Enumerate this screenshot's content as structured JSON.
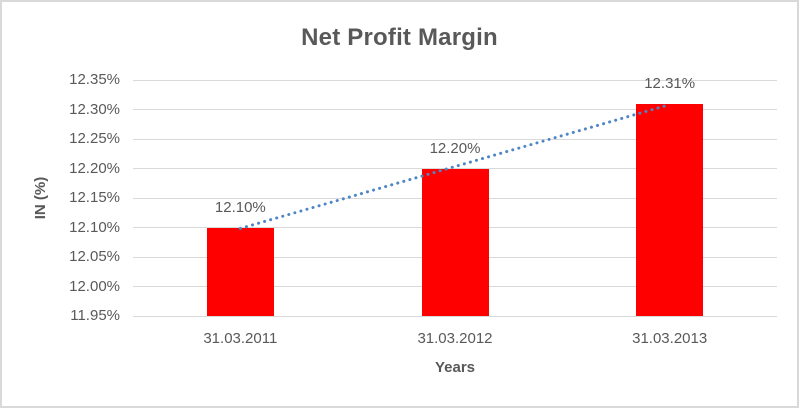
{
  "chart_data": {
    "type": "bar",
    "title": "Net Profit Margin",
    "xlabel": "Years",
    "ylabel": "IN (%)",
    "categories": [
      "31.03.2011",
      "31.03.2012",
      "31.03.2013"
    ],
    "values": [
      12.1,
      12.2,
      12.31
    ],
    "data_labels": [
      "12.10%",
      "12.20%",
      "12.31%"
    ],
    "yticks": [
      11.95,
      12.0,
      12.05,
      12.1,
      12.15,
      12.2,
      12.25,
      12.3,
      12.35
    ],
    "ytick_labels": [
      "11.95%",
      "12.00%",
      "12.05%",
      "12.10%",
      "12.15%",
      "12.20%",
      "12.25%",
      "12.30%",
      "12.35%"
    ],
    "ylim": [
      11.95,
      12.35
    ],
    "grid": true,
    "legend": "none",
    "trendline": {
      "type": "linear",
      "style": "dotted"
    },
    "colors": {
      "bar": "#FF0000",
      "trendline": "#4E86C5",
      "gridline": "#D9D9D9",
      "text": "#595959",
      "background": "#FFFFFF",
      "border": "#D9D9D9"
    }
  }
}
